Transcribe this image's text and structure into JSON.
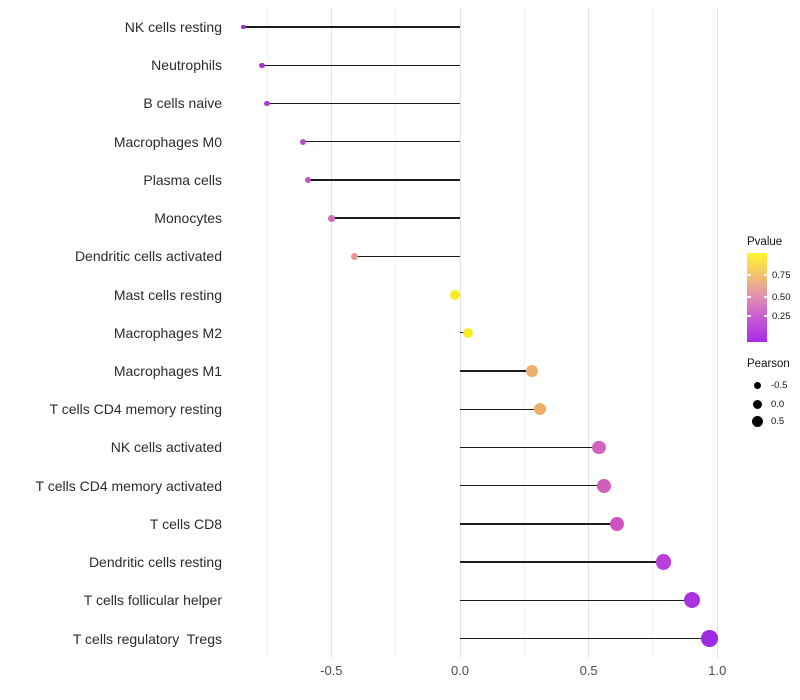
{
  "chart_data": {
    "type": "scatter",
    "style": "lollipop",
    "orientation": "horizontal",
    "title": "",
    "xlabel": "",
    "ylabel": "",
    "xlim": [
      -0.87,
      1.12
    ],
    "grid": true,
    "legend_position": "right",
    "categories": [
      "NK cells resting",
      "Neutrophils",
      "B cells naive",
      "Macrophages M0",
      "Plasma cells",
      "Monocytes",
      "Dendritic cells activated",
      "Mast cells resting",
      "Macrophages M2",
      "Macrophages M1",
      "T cells CD4 memory resting",
      "NK cells activated",
      "T cells CD4 memory activated",
      "T cells CD8",
      "Dendritic cells resting",
      "T cells follicular helper",
      "T cells regulatory  Tregs"
    ],
    "series": [
      {
        "name": "Pearson",
        "values": [
          -0.84,
          -0.77,
          -0.75,
          -0.61,
          -0.59,
          -0.5,
          -0.41,
          -0.02,
          0.03,
          0.28,
          0.31,
          0.54,
          0.56,
          0.61,
          0.79,
          0.9,
          0.97
        ]
      }
    ],
    "point_colors": [
      "#9a30d9",
      "#a535d3",
      "#aa3bd0",
      "#bb4ecb",
      "#c257c5",
      "#cf6dbd",
      "#e9939b",
      "#f5ee27",
      "#f5ee27",
      "#efae6e",
      "#efad6c",
      "#d263bb",
      "#d05fba",
      "#cc55c3",
      "#b83fd9",
      "#a832e0",
      "#a02ae4"
    ],
    "point_radii": [
      2.4,
      2.7,
      2.8,
      3.1,
      3.2,
      3.5,
      3.8,
      5.0,
      5.2,
      6.0,
      6.1,
      6.8,
      6.9,
      7.1,
      7.6,
      8.0,
      8.3
    ],
    "x_ticks": [
      {
        "label": "-0.5",
        "value": -0.5
      },
      {
        "label": "0.0",
        "value": 0.0
      },
      {
        "label": "0.5",
        "value": 0.5
      },
      {
        "label": "1.0",
        "value": 1.0
      }
    ],
    "grid_minor_values": [
      -0.75,
      -0.25,
      0.25,
      0.75
    ],
    "grid_major_values": [
      -0.5,
      0.0,
      0.5,
      1.0
    ],
    "color_encodes": "Pvalue",
    "size_encodes": "Pearson",
    "stem_color": "#1c1c1c"
  },
  "legend_pvalue": {
    "title": "Pvalue",
    "tick_labels": [
      "0.75",
      "0.50",
      "0.25"
    ],
    "gradient_stops": [
      "#ab2ae8",
      "#c75dd3",
      "#e392af",
      "#f4c46c",
      "#fdf72b"
    ]
  },
  "legend_pearson": {
    "title": "Pearson",
    "items": [
      {
        "label": "-0.5",
        "radius": 3.5
      },
      {
        "label": "0.0",
        "radius": 4.5
      },
      {
        "label": "0.5",
        "radius": 5.5
      }
    ]
  }
}
